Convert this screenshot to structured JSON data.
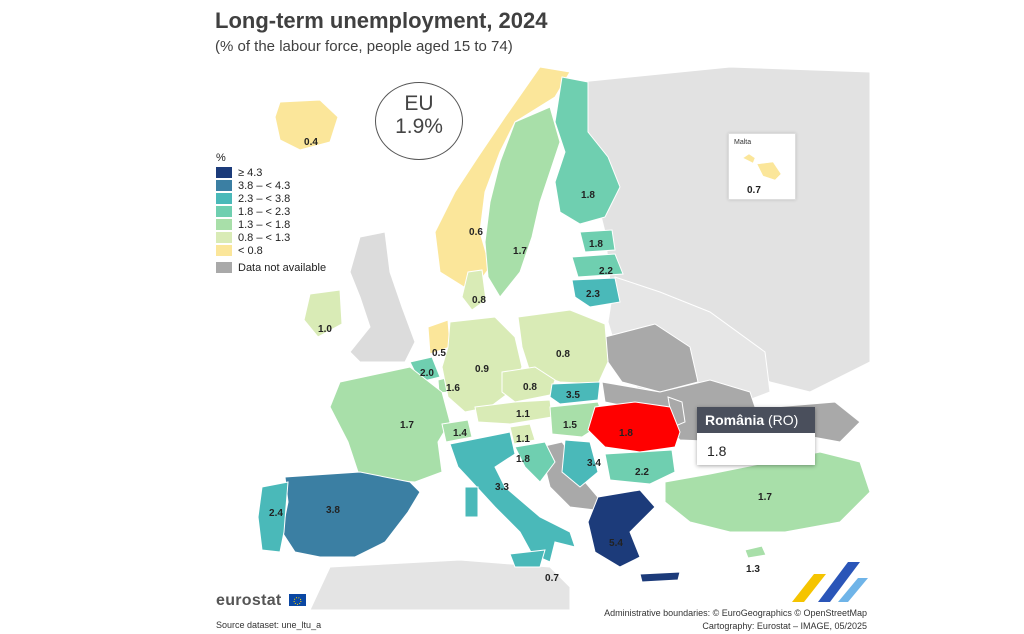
{
  "title": "Long-term unemployment, 2024",
  "subtitle": "(% of the labour force, people aged 15 to 74)",
  "eu": {
    "name": "EU",
    "value": "1.9%"
  },
  "legend": {
    "unit": "%",
    "classes": [
      {
        "label": "≥ 4.3",
        "color": "#1c3b7a"
      },
      {
        "label": "3.8 – < 4.3",
        "color": "#3b7fa3"
      },
      {
        "label": "2.3 – < 3.8",
        "color": "#4ab9b9"
      },
      {
        "label": "1.8 – < 2.3",
        "color": "#6fcfb0"
      },
      {
        "label": "1.3 – < 1.8",
        "color": "#a8dfa9"
      },
      {
        "label": "0.8 – < 1.3",
        "color": "#d9ebb6"
      },
      {
        "label": "< 0.8",
        "color": "#fbe69a"
      }
    ],
    "na_label": "Data not available",
    "na_color": "#a9a9a9"
  },
  "countries": [
    {
      "code": "IS",
      "value": "0.4"
    },
    {
      "code": "NO",
      "value": "0.6"
    },
    {
      "code": "SE",
      "value": "1.7"
    },
    {
      "code": "FI",
      "value": "1.8"
    },
    {
      "code": "EE",
      "value": "1.8"
    },
    {
      "code": "LV",
      "value": "2.2"
    },
    {
      "code": "LT",
      "value": "2.3"
    },
    {
      "code": "DK",
      "value": "0.8"
    },
    {
      "code": "IE",
      "value": "1.0"
    },
    {
      "code": "NL",
      "value": "0.5"
    },
    {
      "code": "BE",
      "value": "2.0"
    },
    {
      "code": "LU",
      "value": "1.6"
    },
    {
      "code": "DE",
      "value": "0.9"
    },
    {
      "code": "PL",
      "value": "0.8"
    },
    {
      "code": "CZ",
      "value": "0.8"
    },
    {
      "code": "SK",
      "value": "3.5"
    },
    {
      "code": "AT",
      "value": "1.1"
    },
    {
      "code": "HU",
      "value": "1.5"
    },
    {
      "code": "FR",
      "value": "1.7"
    },
    {
      "code": "CH",
      "value": "1.4"
    },
    {
      "code": "SI",
      "value": "1.1"
    },
    {
      "code": "HR",
      "value": "1.8"
    },
    {
      "code": "RS",
      "value": "3.4"
    },
    {
      "code": "RO",
      "value": "1.8"
    },
    {
      "code": "BG",
      "value": "2.2"
    },
    {
      "code": "IT",
      "value": "3.3"
    },
    {
      "code": "ES",
      "value": "3.8"
    },
    {
      "code": "PT",
      "value": "2.4"
    },
    {
      "code": "EL",
      "value": "5.4"
    },
    {
      "code": "TR",
      "value": "1.7"
    },
    {
      "code": "MT",
      "value": "0.7"
    },
    {
      "code": "CY",
      "value": "1.3"
    }
  ],
  "inset": {
    "title": "Malta",
    "value": "0.7"
  },
  "tooltip": {
    "name": "România",
    "code": "(RO)",
    "value": "1.8"
  },
  "footer": {
    "logo": "eurostat",
    "source": "Source dataset: une_ltu_a",
    "boundaries": "Administrative boundaries: © EuroGeographics © OpenStreetMap",
    "cartography": "Cartography: Eurostat – IMAGE, 05/2025"
  }
}
